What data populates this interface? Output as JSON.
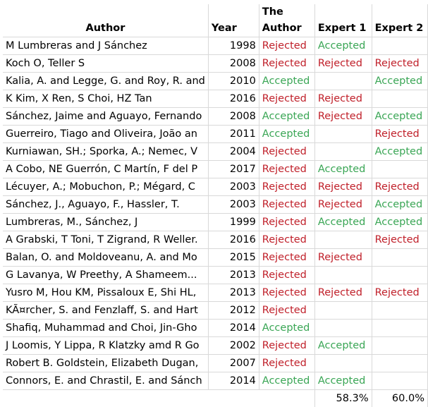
{
  "headers": {
    "author": "Author",
    "year": "Year",
    "the_author": "The\nAuthor",
    "expert1": "Expert 1",
    "expert2": "Expert 2"
  },
  "rows": [
    {
      "author": "M Lumbreras and J Sánchez",
      "year": "1998",
      "the_author": "Rejected",
      "expert1": "Accepted",
      "expert2": ""
    },
    {
      "author": "Koch O, Teller S",
      "year": "2008",
      "the_author": "Rejected",
      "expert1": "Rejected",
      "expert2": "Rejected"
    },
    {
      "author": "Kalia, A. and Legge, G. and Roy, R. and",
      "year": "2010",
      "the_author": "Accepted",
      "expert1": "",
      "expert2": "Accepted"
    },
    {
      "author": "K Kim, X Ren, S Choi, HZ Tan",
      "year": "2016",
      "the_author": "Rejected",
      "expert1": "Rejected",
      "expert2": ""
    },
    {
      "author": "Sánchez, Jaime and Aguayo, Fernando",
      "year": "2008",
      "the_author": "Accepted",
      "expert1": "Rejected",
      "expert2": "Accepted"
    },
    {
      "author": "Guerreiro, Tiago and Oliveira, João an",
      "year": "2011",
      "the_author": "Accepted",
      "expert1": "",
      "expert2": "Rejected"
    },
    {
      "author": "Kurniawan, SH.; Sporka, A.; Nemec, V",
      "year": "2004",
      "the_author": "Rejected",
      "expert1": "",
      "expert2": "Accepted"
    },
    {
      "author": "A Cobo, NE Guerrón, C Martín, F del P",
      "year": "2017",
      "the_author": "Rejected",
      "expert1": "Accepted",
      "expert2": ""
    },
    {
      "author": "Lécuyer, A.; Mobuchon, P.; Mégard, C",
      "year": "2003",
      "the_author": "Rejected",
      "expert1": "Rejected",
      "expert2": "Rejected"
    },
    {
      "author": "Sánchez, J., Aguayo, F., Hassler, T.",
      "year": "2003",
      "the_author": "Rejected",
      "expert1": "Rejected",
      "expert2": "Accepted"
    },
    {
      "author": "Lumbreras, M., Sánchez, J",
      "year": "1999",
      "the_author": "Rejected",
      "expert1": "Accepted",
      "expert2": "Accepted"
    },
    {
      "author": "A Grabski, T Toni, T Zigrand, R Weller.",
      "year": "2016",
      "the_author": "Rejected",
      "expert1": "",
      "expert2": "Rejected"
    },
    {
      "author": "Balan, O. and Moldoveanu, A. and Mo",
      "year": "2015",
      "the_author": "Rejected",
      "expert1": "Rejected",
      "expert2": ""
    },
    {
      "author": "G Lavanya, W Preethy, A Shameem...",
      "year": "2013",
      "the_author": "Rejected",
      "expert1": "",
      "expert2": ""
    },
    {
      "author": "Yusro M, Hou KM, Pissaloux E, Shi HL,",
      "year": "2013",
      "the_author": "Rejected",
      "expert1": "Rejected",
      "expert2": "Rejected"
    },
    {
      "author": "KÃ¤rcher, S. and Fenzlaff, S. and Hart",
      "year": "2012",
      "the_author": "Rejected",
      "expert1": "",
      "expert2": ""
    },
    {
      "author": "Shafiq, Muhammad and Choi, Jin-Gho",
      "year": "2014",
      "the_author": "Accepted",
      "expert1": "",
      "expert2": ""
    },
    {
      "author": "J Loomis, Y Lippa, R Klatzky amd R Go",
      "year": "2002",
      "the_author": "Rejected",
      "expert1": "Accepted",
      "expert2": ""
    },
    {
      "author": "Robert B. Goldstein, Elizabeth Dugan,",
      "year": "2007",
      "the_author": "Rejected",
      "expert1": "",
      "expert2": ""
    },
    {
      "author": "Connors, E. and Chrastil, E. and Sánch",
      "year": "2014",
      "the_author": "Accepted",
      "expert1": "Accepted",
      "expert2": ""
    }
  ],
  "summary": {
    "expert1": "58.3%",
    "expert2": "60.0%"
  },
  "colors": {
    "accepted": "#3aa655",
    "rejected": "#c0202a",
    "gridline": "#d9d9d9"
  }
}
